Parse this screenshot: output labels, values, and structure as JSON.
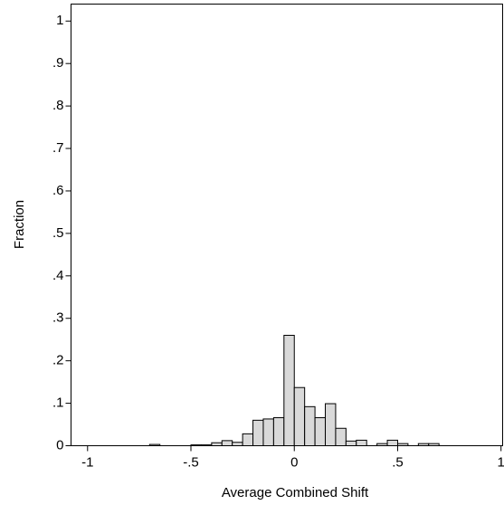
{
  "chart_data": {
    "type": "histogram",
    "x_label": "Average Combined Shift",
    "y_label": "Fraction",
    "bins": [
      -0.7,
      -0.65,
      -0.6,
      -0.55,
      -0.5,
      -0.45,
      -0.4,
      -0.35,
      -0.3,
      -0.25,
      -0.2,
      -0.15,
      -0.1,
      -0.05,
      0,
      0.05,
      0.1,
      0.15,
      0.2,
      0.25,
      0.3,
      0.35,
      0.4,
      0.45,
      0.5,
      0.55,
      0.6,
      0.65,
      0.7
    ],
    "values": [
      0.003,
      0,
      0,
      0,
      0.002,
      0.002,
      0.007,
      0.012,
      0.008,
      0.028,
      0.06,
      0.063,
      0.066,
      0.26,
      0.137,
      0.092,
      0.066,
      0.099,
      0.041,
      0.011,
      0.013,
      0,
      0.005,
      0.013,
      0.005,
      0,
      0.005,
      0.005
    ],
    "color": "#d9d9d9",
    "xlim": [
      -1.08,
      1.01
    ],
    "ylim": [
      0,
      1.04
    ],
    "xticks": [
      {
        "value": -1,
        "label": "-1"
      },
      {
        "value": -0.5,
        "label": "-.5"
      },
      0,
      {
        "value": 0.5,
        "label": ".5"
      },
      1
    ],
    "yticks": [
      0,
      {
        "value": 0.1,
        "label": ".1"
      },
      {
        "value": 0.2,
        "label": ".2"
      },
      {
        "value": 0.3,
        "label": ".3"
      },
      {
        "value": 0.4,
        "label": ".4"
      },
      {
        "value": 0.5,
        "label": ".5"
      },
      {
        "value": 0.6,
        "label": ".6"
      },
      {
        "value": 0.7,
        "label": ".7"
      },
      {
        "value": 0.8,
        "label": ".8"
      },
      {
        "value": 0.9,
        "label": ".9"
      },
      1
    ],
    "grid": false
  }
}
